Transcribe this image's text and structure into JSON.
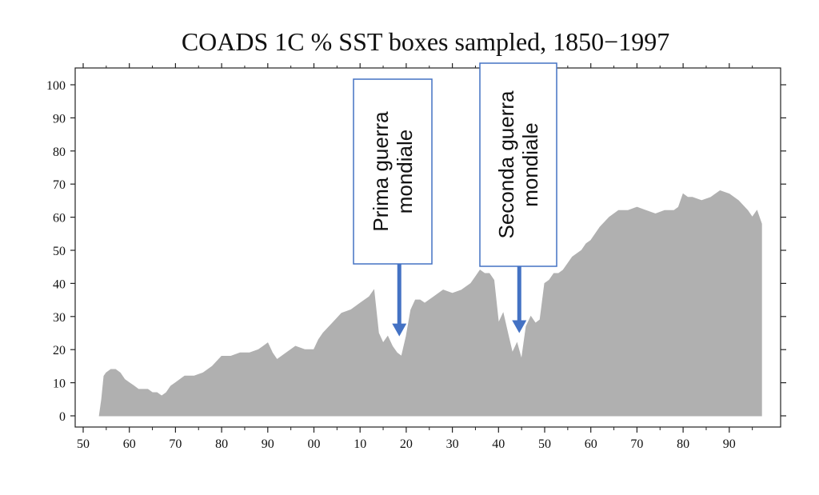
{
  "chart_data": {
    "type": "area",
    "title": "COADS 1C % SST boxes sampled, 1850−1997",
    "xlabel": "",
    "ylabel": "",
    "xlim": [
      1850,
      1998
    ],
    "ylim": [
      0,
      100
    ],
    "grid": false,
    "legend": "none",
    "x_ticks": [
      1850,
      1860,
      1870,
      1880,
      1890,
      1900,
      1910,
      1920,
      1930,
      1940,
      1950,
      1960,
      1970,
      1980,
      1990
    ],
    "x_tick_labels": [
      "50",
      "60",
      "70",
      "80",
      "90",
      "00",
      "10",
      "20",
      "30",
      "40",
      "50",
      "60",
      "70",
      "80",
      "90"
    ],
    "y_ticks": [
      0,
      10,
      20,
      30,
      40,
      50,
      60,
      70,
      80,
      90,
      100
    ],
    "y_tick_labels": [
      "0",
      "10",
      "20",
      "30",
      "40",
      "50",
      "60",
      "70",
      "80",
      "90",
      "100"
    ],
    "fill_color": "#b0b0b0",
    "series": [
      {
        "x": [
          1853.5,
          1854,
          1854.5,
          1855,
          1856,
          1857,
          1858,
          1859,
          1860,
          1861,
          1862,
          1863,
          1864,
          1865,
          1866,
          1867,
          1868,
          1869,
          1870,
          1872,
          1874,
          1876,
          1878,
          1880,
          1881,
          1882,
          1884,
          1886,
          1888,
          1889,
          1890,
          1891,
          1892,
          1894,
          1896,
          1898,
          1900,
          1901,
          1902,
          1904,
          1906,
          1908,
          1910,
          1912,
          1913,
          1914,
          1915,
          1916,
          1917,
          1918,
          1919,
          1920,
          1921,
          1922,
          1923,
          1924,
          1926,
          1928,
          1930,
          1932,
          1934,
          1935,
          1936,
          1937,
          1938,
          1939,
          1940,
          1941,
          1942,
          1943,
          1944,
          1945,
          1946,
          1947,
          1948,
          1949,
          1950,
          1951,
          1952,
          1953,
          1954,
          1955,
          1956,
          1957,
          1958,
          1959,
          1960,
          1962,
          1964,
          1966,
          1968,
          1970,
          1972,
          1974,
          1976,
          1978,
          1979,
          1980,
          1981,
          1982,
          1984,
          1986,
          1987,
          1988,
          1990,
          1992,
          1994,
          1995,
          1996,
          1997
        ],
        "values": [
          0,
          5,
          12,
          13,
          14,
          14,
          13,
          11,
          10,
          9,
          8,
          8,
          8,
          7,
          7,
          6,
          7,
          9,
          10,
          12,
          12,
          13,
          15,
          18,
          18,
          18,
          19,
          19,
          20,
          21,
          22,
          19,
          17,
          19,
          21,
          20,
          20,
          23,
          25,
          28,
          31,
          32,
          34,
          36,
          38,
          25,
          22,
          24,
          21,
          19,
          18,
          24,
          32,
          35,
          35,
          34,
          36,
          38,
          37,
          38,
          40,
          42,
          44,
          43,
          43,
          41,
          28,
          31,
          25,
          19,
          22,
          17,
          27,
          30,
          28,
          29,
          40,
          41,
          43,
          43,
          44,
          46,
          48,
          49,
          50,
          52,
          53,
          57,
          60,
          62,
          62,
          63,
          62,
          61,
          62,
          62,
          63,
          67,
          66,
          66,
          65,
          66,
          67,
          68,
          67,
          65,
          62,
          60,
          62,
          58
        ]
      }
    ],
    "annotations": [
      {
        "label_lines": [
          "Prima guerra",
          "mondiale"
        ],
        "arrow_to_x": 1918.5,
        "arrow_to_y": 24
      },
      {
        "label_lines": [
          "Seconda guerra",
          "mondiale"
        ],
        "arrow_to_x": 1944.5,
        "arrow_to_y": 25
      }
    ],
    "colors": {
      "axis": "#222222",
      "annotation_border": "#4472c4",
      "arrow": "#4472c4"
    }
  }
}
